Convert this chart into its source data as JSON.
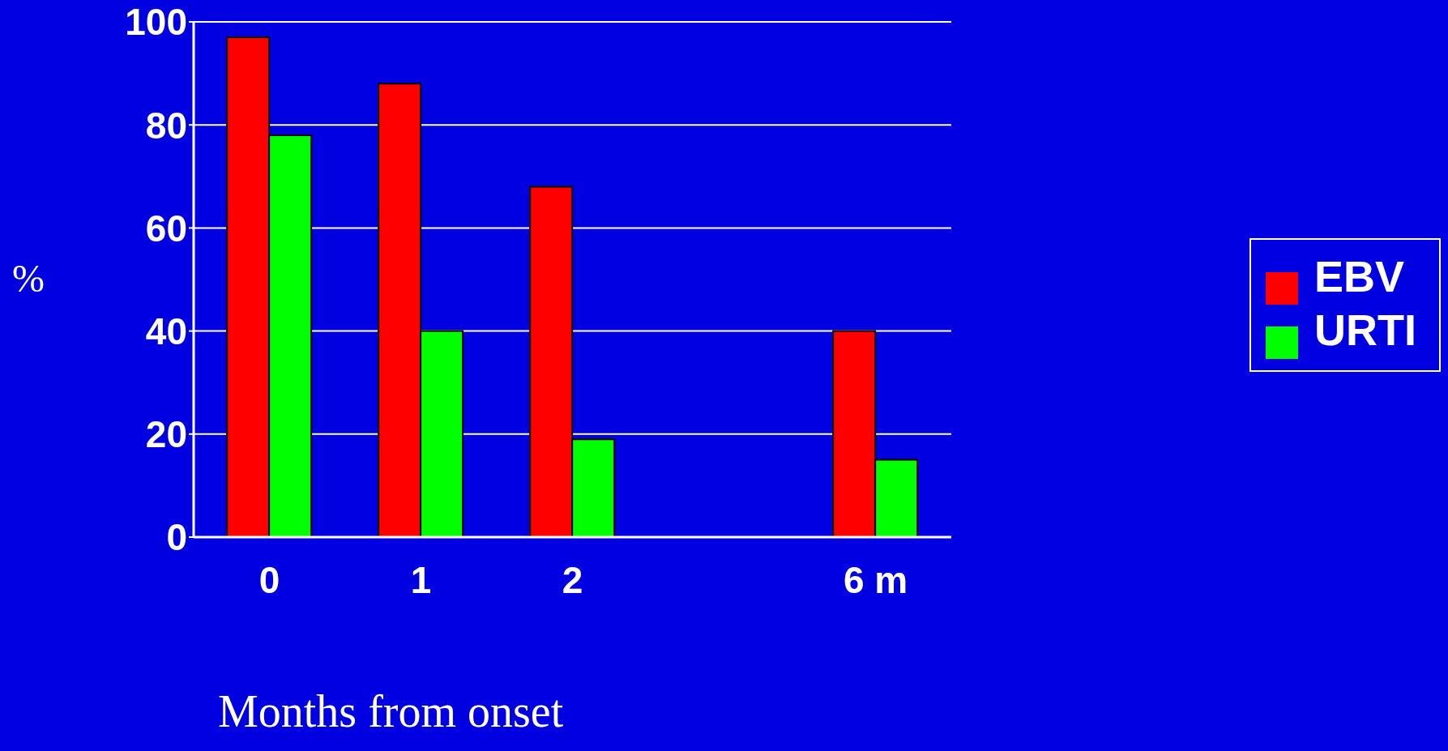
{
  "chart_data": {
    "type": "bar",
    "xlabel": "Months from onset",
    "ylabel": "%",
    "categories": [
      "0",
      "1",
      "2",
      null,
      "6 m"
    ],
    "series": [
      {
        "name": "EBV",
        "color": "#ff0000",
        "values": [
          97,
          88,
          68,
          null,
          40
        ]
      },
      {
        "name": "URTI",
        "color": "#00ff00",
        "values": [
          78,
          40,
          19,
          null,
          15
        ]
      }
    ],
    "ylim": [
      0,
      100
    ],
    "yticks": [
      0,
      20,
      40,
      60,
      80,
      100
    ],
    "grid": "y",
    "legend": "right"
  }
}
